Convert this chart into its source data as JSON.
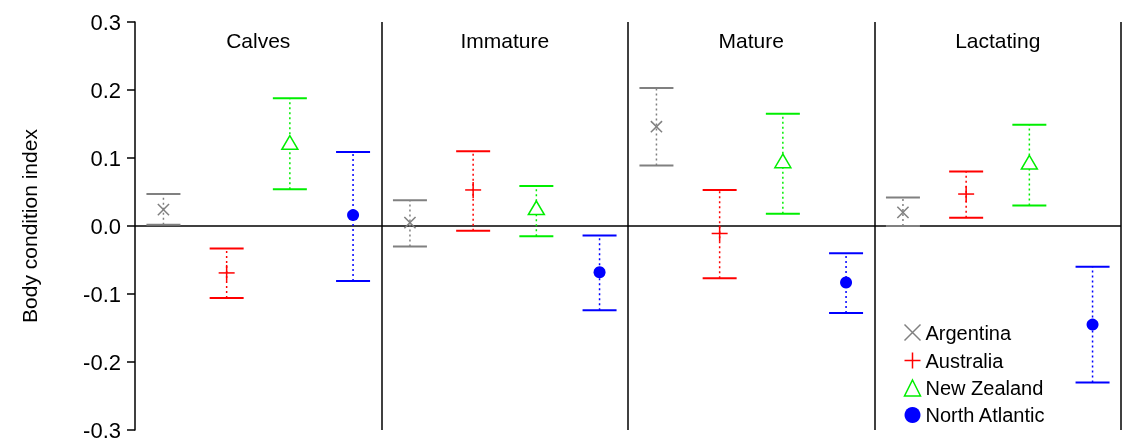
{
  "chart_data": {
    "type": "scatter",
    "ylabel": "Body condition index",
    "categories": [
      "Calves",
      "Immature",
      "Mature",
      "Lactating"
    ],
    "ylim": [
      -0.3,
      0.3
    ],
    "yticks": [
      -0.3,
      -0.2,
      -0.1,
      {
        "value": 0,
        "label": "0.0"
      },
      0.1,
      0.2,
      0.3
    ],
    "grid": false,
    "legend": "bottom right",
    "line_style": "dotted",
    "ref_lines": [
      {
        "axis": "y",
        "value": 0,
        "color": "#000000"
      }
    ],
    "series": [
      {
        "name": "Argentina",
        "color": "#808080",
        "marker": "cross",
        "values": [
          0.024,
          0.005,
          0.146,
          0.02
        ],
        "errors": [
          [
            0.002,
            0.047
          ],
          [
            -0.03,
            0.038
          ],
          [
            0.089,
            0.203
          ],
          [
            0.0,
            0.042
          ]
        ]
      },
      {
        "name": "Australia",
        "color": "#ff0000",
        "marker": "plus",
        "values": [
          -0.069,
          0.053,
          -0.011,
          0.047
        ],
        "errors": [
          [
            -0.106,
            -0.033
          ],
          [
            -0.007,
            0.11
          ],
          [
            -0.077,
            0.053
          ],
          [
            0.012,
            0.08
          ]
        ]
      },
      {
        "name": "New Zealand",
        "color": "#00ee00",
        "marker": "triangle",
        "values": [
          0.121,
          0.025,
          0.094,
          0.092
        ],
        "errors": [
          [
            0.054,
            0.188
          ],
          [
            -0.015,
            0.059
          ],
          [
            0.018,
            0.165
          ],
          [
            0.03,
            0.149
          ]
        ]
      },
      {
        "name": "North Atlantic",
        "color": "#0000ff",
        "marker": "circle",
        "values": [
          0.016,
          -0.068,
          -0.083,
          -0.145
        ],
        "errors": [
          [
            -0.081,
            0.109
          ],
          [
            -0.124,
            -0.014
          ],
          [
            -0.128,
            -0.04
          ],
          [
            -0.23,
            -0.06
          ]
        ]
      }
    ]
  }
}
